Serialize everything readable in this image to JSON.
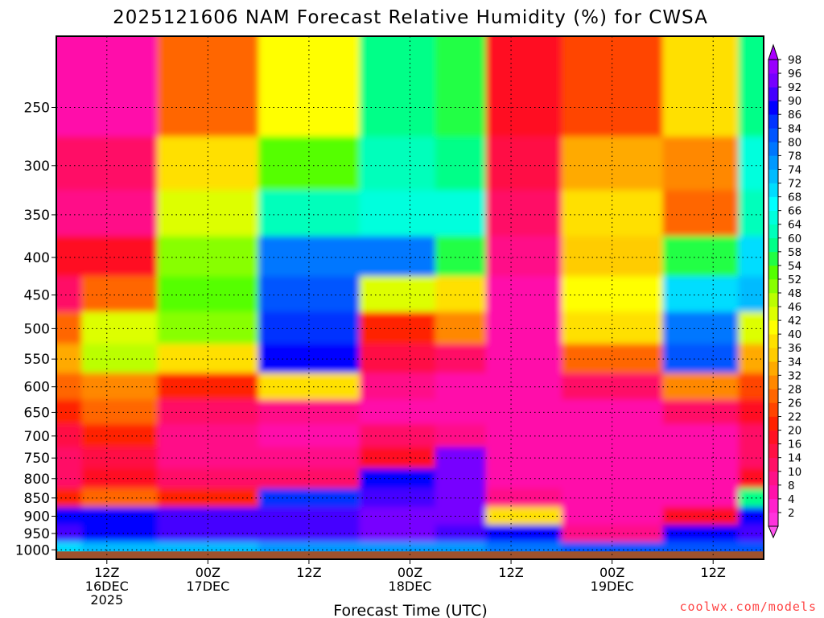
{
  "chart_data": {
    "type": "heatmap",
    "title": "2025121606 NAM Forecast Relative Humidity (%) for CWSA",
    "xlabel": "Forecast Time (UTC)",
    "ylabel": "",
    "x_ticks": [
      {
        "hour": 12,
        "lines": [
          "12Z",
          "16DEC",
          "2025"
        ]
      },
      {
        "hour": 24,
        "lines": [
          "00Z",
          "17DEC"
        ]
      },
      {
        "hour": 36,
        "lines": [
          "12Z"
        ]
      },
      {
        "hour": 48,
        "lines": [
          "00Z",
          "18DEC"
        ]
      },
      {
        "hour": 60,
        "lines": [
          "12Z"
        ]
      },
      {
        "hour": 72,
        "lines": [
          "00Z",
          "19DEC"
        ]
      },
      {
        "hour": 84,
        "lines": [
          "12Z"
        ]
      }
    ],
    "x_range_hours": [
      6,
      90
    ],
    "y_scale": "log-pressure",
    "y_ticks": [
      250,
      300,
      350,
      400,
      450,
      500,
      550,
      600,
      650,
      700,
      750,
      800,
      850,
      900,
      950,
      1000
    ],
    "y_range": [
      200,
      1030
    ],
    "grid": true,
    "colorbar_levels": [
      2,
      4,
      8,
      10,
      14,
      16,
      20,
      22,
      26,
      28,
      32,
      34,
      36,
      40,
      42,
      46,
      48,
      52,
      54,
      58,
      60,
      64,
      66,
      68,
      72,
      74,
      78,
      80,
      84,
      86,
      90,
      92,
      96,
      98
    ],
    "colorbar_colors": [
      "#ff33dd",
      "#ff22cc",
      "#ff11aa",
      "#ff1188",
      "#ff1166",
      "#ff1144",
      "#ff1122",
      "#ff2200",
      "#ff4400",
      "#ff6600",
      "#ff8800",
      "#ffaa00",
      "#ffcc00",
      "#ffe000",
      "#ffff00",
      "#ddff00",
      "#bbff00",
      "#88ff00",
      "#55ff00",
      "#22ff44",
      "#00ff88",
      "#00ffbb",
      "#00ffdd",
      "#00ffff",
      "#00ddff",
      "#00bbff",
      "#0099ff",
      "#0077ff",
      "#0055ff",
      "#0033ff",
      "#0000ff",
      "#4400ff",
      "#7700ff",
      "#9900ff"
    ],
    "ground_color": "#a0522d",
    "series": [
      {
        "hour": 6,
        "rh_by_level": {
          "250": 8,
          "300": 14,
          "350": 10,
          "400": 20,
          "450": 14,
          "500": 28,
          "550": 34,
          "600": 28,
          "650": 22,
          "700": 16,
          "750": 14,
          "800": 14,
          "850": 22,
          "900": 90,
          "950": 92,
          "1000": 70
        }
      },
      {
        "hour": 12,
        "rh_by_level": {
          "250": 8,
          "300": 14,
          "350": 10,
          "400": 20,
          "450": 28,
          "500": 46,
          "550": 48,
          "600": 32,
          "650": 28,
          "700": 22,
          "750": 16,
          "800": 20,
          "850": 28,
          "900": 90,
          "950": 90,
          "1000": 74
        }
      },
      {
        "hour": 24,
        "rh_by_level": {
          "250": 28,
          "300": 40,
          "350": 46,
          "400": 50,
          "450": 54,
          "500": 50,
          "550": 40,
          "600": 22,
          "650": 14,
          "700": 10,
          "750": 10,
          "800": 14,
          "850": 22,
          "900": 92,
          "950": 92,
          "1000": 74
        }
      },
      {
        "hour": 36,
        "rh_by_level": {
          "250": 42,
          "300": 54,
          "350": 64,
          "400": 80,
          "450": 84,
          "500": 86,
          "550": 88,
          "600": 40,
          "650": 10,
          "700": 8,
          "750": 10,
          "800": 14,
          "850": 86,
          "900": 92,
          "950": 92,
          "1000": 76
        }
      },
      {
        "hour": 48,
        "rh_by_level": {
          "250": 60,
          "300": 62,
          "350": 66,
          "400": 80,
          "450": 46,
          "500": 22,
          "550": 16,
          "600": 10,
          "650": 8,
          "700": 14,
          "750": 20,
          "800": 88,
          "850": 92,
          "900": 94,
          "950": 94,
          "1000": 78
        }
      },
      {
        "hour": 54,
        "rh_by_level": {
          "250": 58,
          "300": 60,
          "350": 66,
          "400": 58,
          "450": 40,
          "500": 30,
          "550": 14,
          "600": 8,
          "650": 6,
          "700": 10,
          "750": 94,
          "800": 96,
          "850": 94,
          "900": 94,
          "950": 92,
          "1000": 76
        }
      },
      {
        "hour": 60,
        "rh_by_level": {
          "250": 20,
          "300": 16,
          "350": 14,
          "400": 10,
          "450": 8,
          "500": 8,
          "550": 6,
          "600": 6,
          "650": 6,
          "700": 6,
          "750": 6,
          "800": 8,
          "850": 10,
          "900": 40,
          "950": 90,
          "1000": 80
        }
      },
      {
        "hour": 72,
        "rh_by_level": {
          "250": 26,
          "300": 34,
          "350": 40,
          "400": 36,
          "450": 42,
          "500": 40,
          "550": 28,
          "600": 14,
          "650": 8,
          "700": 6,
          "750": 6,
          "800": 6,
          "850": 6,
          "900": 6,
          "950": 10,
          "1000": 84
        }
      },
      {
        "hour": 84,
        "rh_by_level": {
          "250": 40,
          "300": 32,
          "350": 28,
          "400": 58,
          "450": 72,
          "500": 80,
          "550": 84,
          "600": 30,
          "650": 14,
          "700": 8,
          "750": 6,
          "800": 6,
          "850": 6,
          "900": 20,
          "950": 90,
          "1000": 84
        }
      },
      {
        "hour": 90,
        "rh_by_level": {
          "250": 60,
          "300": 66,
          "350": 64,
          "400": 70,
          "450": 74,
          "500": 46,
          "550": 34,
          "600": 24,
          "650": 18,
          "700": 14,
          "750": 12,
          "800": 20,
          "850": 60,
          "900": 90,
          "950": 92,
          "1000": 84
        }
      }
    ]
  },
  "credit": "coolwx.com/models"
}
